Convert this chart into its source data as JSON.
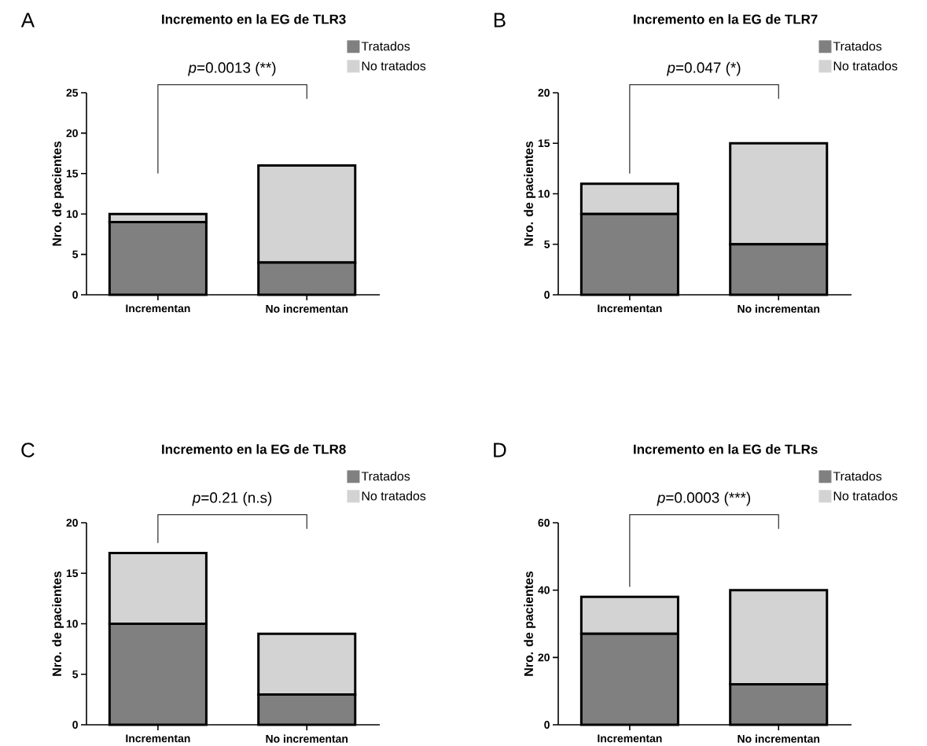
{
  "chart_data": [
    {
      "type": "bar",
      "stacked": true,
      "title": "Incremento en la EG de TLR3",
      "ylabel": "Nro. de pacientes",
      "categories": [
        "Incrementan",
        "No incrementan"
      ],
      "series": [
        {
          "name": "Tratados",
          "color": "#808080",
          "values": [
            9,
            4
          ]
        },
        {
          "name": "No tratados",
          "color": "#d3d3d3",
          "values": [
            1,
            12
          ]
        }
      ],
      "ylim": [
        0,
        25
      ],
      "yticks": [
        0,
        5,
        10,
        15,
        20,
        25
      ],
      "legend": "top right",
      "annotations": [
        "A",
        "*p*=0.0013 (**)"
      ]
    },
    {
      "type": "bar",
      "stacked": true,
      "title": "Incremento en la EG de TLR7",
      "ylabel": "Nro. de pacientes",
      "categories": [
        "Incrementan",
        "No incrementan"
      ],
      "series": [
        {
          "name": "Tratados",
          "color": "#808080",
          "values": [
            8,
            5
          ]
        },
        {
          "name": "No tratados",
          "color": "#d3d3d3",
          "values": [
            3,
            10
          ]
        }
      ],
      "ylim": [
        0,
        20
      ],
      "yticks": [
        0,
        5,
        10,
        15,
        20
      ],
      "legend": "top right",
      "annotations": [
        "B",
        "*p*=0.047 (*)"
      ]
    },
    {
      "type": "bar",
      "stacked": true,
      "title": "Incremento en la EG de TLR8",
      "ylabel": "Nro. de pacientes",
      "categories": [
        "Incrementan",
        "No incrementan"
      ],
      "series": [
        {
          "name": "Tratados",
          "color": "#808080",
          "values": [
            10,
            3
          ]
        },
        {
          "name": "No tratados",
          "color": "#d3d3d3",
          "values": [
            7,
            6
          ]
        }
      ],
      "ylim": [
        0,
        20
      ],
      "yticks": [
        0,
        5,
        10,
        15,
        20
      ],
      "legend": "top right",
      "annotations": [
        "C",
        "*p*=0.21 (n.s)"
      ]
    },
    {
      "type": "bar",
      "stacked": true,
      "title": "Incremento en la EG de TLRs",
      "ylabel": "Nro. de pacientes",
      "categories": [
        "Incrementan",
        "No incrementan"
      ],
      "series": [
        {
          "name": "Tratados",
          "color": "#808080",
          "values": [
            27,
            12
          ]
        },
        {
          "name": "No tratados",
          "color": "#d3d3d3",
          "values": [
            11,
            28
          ]
        }
      ],
      "ylim": [
        0,
        60
      ],
      "yticks": [
        0,
        20,
        40,
        60
      ],
      "legend": "top right",
      "annotations": [
        "D",
        "*p*=0.0003 (***)"
      ]
    }
  ]
}
